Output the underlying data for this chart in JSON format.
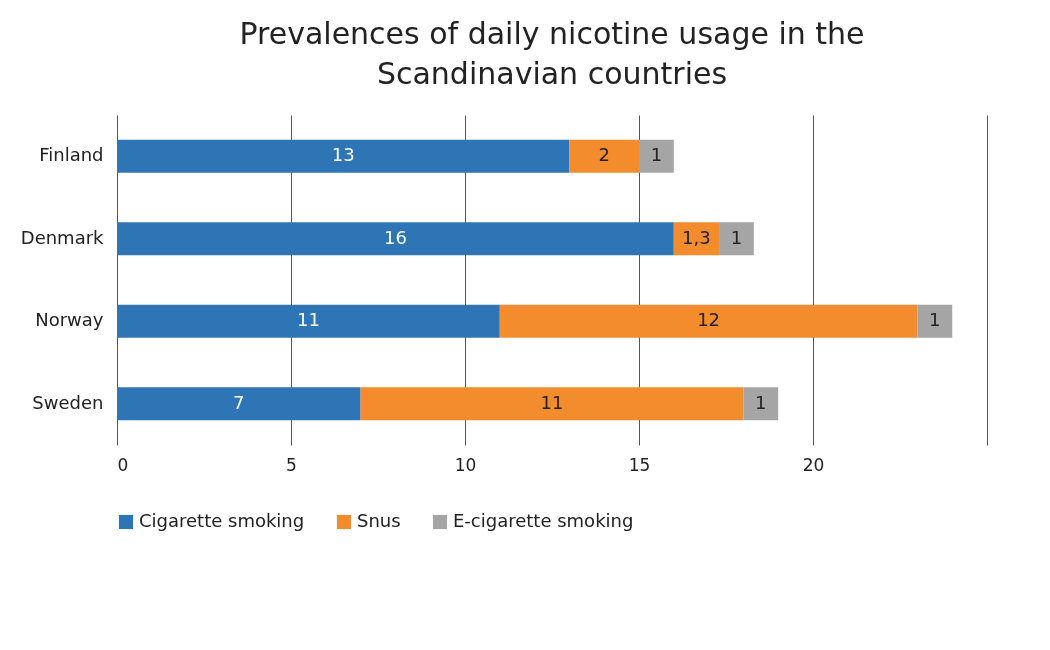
{
  "chart_data": {
    "type": "bar",
    "orientation": "horizontal",
    "stacked": true,
    "title": "Prevalences of daily nicotine usage in the Scandinavian countries",
    "categories": [
      "Finland",
      "Denmark",
      "Norway",
      "Sweden"
    ],
    "series": [
      {
        "name": "Cigarette smoking",
        "color": "#2e75b6",
        "values": [
          13,
          16,
          11,
          7
        ],
        "value_labels": [
          "13",
          "16",
          "11",
          "7"
        ]
      },
      {
        "name": "Snus",
        "color": "#f28c2c",
        "values": [
          2,
          1.3,
          12,
          11
        ],
        "value_labels": [
          "2",
          "1,3",
          "12",
          "11"
        ]
      },
      {
        "name": "E-cigarette smoking",
        "color": "#a5a5a5",
        "values": [
          1,
          1,
          1,
          1
        ],
        "value_labels": [
          "1",
          "1",
          "1",
          "1"
        ]
      }
    ],
    "xlim": [
      0,
      25
    ],
    "xticks": [
      0,
      5,
      10,
      15,
      20,
      {
        "value": 25,
        "label": null
      }
    ],
    "grid": "x",
    "legend": "bottom"
  }
}
